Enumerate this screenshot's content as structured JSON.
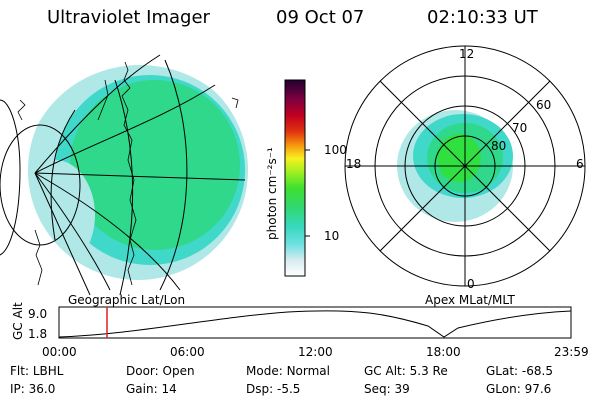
{
  "header": {
    "title": "Ultraviolet Imager",
    "date": "09 Oct 07",
    "time": "02:10:33 UT"
  },
  "colorbar": {
    "unit_label": "photon cm⁻²s⁻¹",
    "ticks": [
      {
        "label": "100",
        "value": 100
      },
      {
        "label": "10",
        "value": 10
      }
    ]
  },
  "geo_panel": {
    "label": "Geographic Lat/Lon"
  },
  "polar_panel": {
    "label": "Apex MLat/MLT",
    "mlt_labels": [
      {
        "label": "12",
        "mlt": 12
      },
      {
        "label": "18",
        "mlt": 18
      },
      {
        "label": "6",
        "mlt": 6
      },
      {
        "label": "0",
        "mlt": 0
      }
    ],
    "lat_labels": [
      {
        "label": "60",
        "mlat": 60
      },
      {
        "label": "70",
        "mlat": 70
      },
      {
        "label": "80",
        "mlat": 80
      }
    ]
  },
  "altitude_plot": {
    "ylabel": "GC Alt",
    "yticks": [
      "9.0",
      "1.8"
    ],
    "xticks": [
      "00:00",
      "06:00",
      "12:00",
      "18:00",
      "23:59"
    ],
    "marker_time": "02:10:33"
  },
  "info": {
    "row1": [
      {
        "label": "Flt:",
        "value": "LBHL"
      },
      {
        "label": "Door:",
        "value": "Open"
      },
      {
        "label": "Mode:",
        "value": "Normal"
      },
      {
        "label": "GC Alt:",
        "value": "5.3 Re"
      },
      {
        "label": "GLat:",
        "value": "-68.5"
      }
    ],
    "row2": [
      {
        "label": "IP:",
        "value": "36.0"
      },
      {
        "label": "Gain:",
        "value": "14"
      },
      {
        "label": "Dsp:",
        "value": "-5.5"
      },
      {
        "label": "Seq:",
        "value": "39"
      },
      {
        "label": "GLon:",
        "value": "97.6"
      }
    ]
  },
  "colors": {
    "aurora_main": "#2fd88a",
    "aurora_bright": "#30e040",
    "aurora_dim": "#40d8c8",
    "aurora_faint": "#b0e8e8",
    "marker": "#e02020"
  }
}
